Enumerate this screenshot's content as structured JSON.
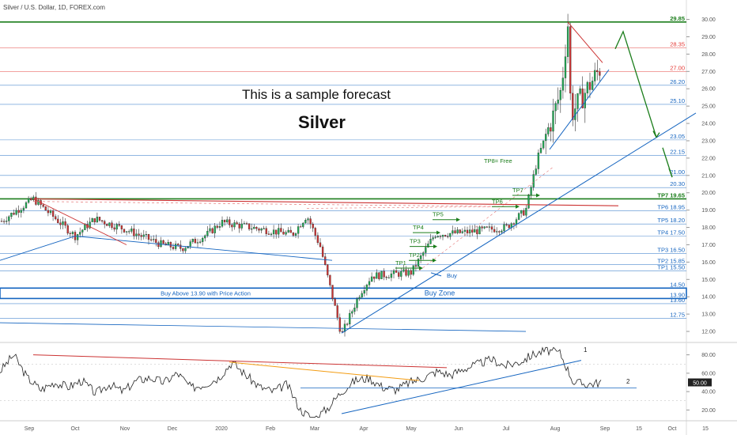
{
  "symbol_title": "Silver / U.S. Dollar, 1D, FOREX.com",
  "forecast_text": "This is a sample forecast",
  "chart_title": "Silver",
  "colors": {
    "up": "#26a69a",
    "bull_candle": "#22aa55",
    "bear_candle": "#cc3333",
    "level_blue": "#1565c0",
    "level_green": "#1b7d1b",
    "level_red": "#e53935",
    "trend_blue": "#1565c0",
    "rsi_line": "#222222"
  },
  "chart_data": [
    {
      "type": "candlestick",
      "title": "Silver / U.S. Dollar, 1D, FOREX.com",
      "x_ticks": [
        "Sep",
        "Oct",
        "Nov",
        "Dec",
        "2020",
        "Feb",
        "Mar",
        "Apr",
        "May",
        "Jun",
        "Jul",
        "Aug",
        "Sep",
        "15",
        "Oct",
        "15"
      ],
      "y_ticks": [
        "12.00",
        "13.00",
        "14.00",
        "15.00",
        "16.00",
        "17.00",
        "18.00",
        "19.00",
        "20.00",
        "21.00",
        "22.00",
        "23.00",
        "24.00",
        "25.00",
        "26.00",
        "27.00",
        "28.00",
        "29.00",
        "30.00"
      ],
      "ylim": [
        11.5,
        30.3
      ],
      "price_series_approx": [
        {
          "date": "Sep 2019",
          "price": 18.3
        },
        {
          "date": "Sep 2019 peak",
          "price": 19.65
        },
        {
          "date": "Oct",
          "price": 17.5
        },
        {
          "date": "Oct mid",
          "price": 18.5
        },
        {
          "date": "Nov",
          "price": 17.9
        },
        {
          "date": "Nov late",
          "price": 17.0
        },
        {
          "date": "Dec",
          "price": 16.8
        },
        {
          "date": "Dec late",
          "price": 17.6
        },
        {
          "date": "2020",
          "price": 18.3
        },
        {
          "date": "Jan",
          "price": 17.9
        },
        {
          "date": "Feb",
          "price": 17.6
        },
        {
          "date": "Feb late",
          "price": 18.7
        },
        {
          "date": "Mar",
          "price": 16.9
        },
        {
          "date": "Mar low",
          "price": 11.8
        },
        {
          "date": "Mar end",
          "price": 14.2
        },
        {
          "date": "Apr",
          "price": 15.2
        },
        {
          "date": "May",
          "price": 15.4
        },
        {
          "date": "May late",
          "price": 17.6
        },
        {
          "date": "Jun",
          "price": 17.7
        },
        {
          "date": "Jul",
          "price": 18.0
        },
        {
          "date": "Jul mid",
          "price": 19.0
        },
        {
          "date": "Jul late",
          "price": 22.0
        },
        {
          "date": "Jul end",
          "price": 24.5
        },
        {
          "date": "Aug",
          "price": 26.0
        },
        {
          "date": "Aug peak",
          "price": 29.85
        },
        {
          "date": "Aug low",
          "price": 24.5
        },
        {
          "date": "Aug late",
          "price": 27.4
        }
      ],
      "levels": [
        {
          "label": "29.85",
          "price": 29.85,
          "color": "#1b7d1b"
        },
        {
          "label": "28.35",
          "price": 28.35,
          "color": "#e53935"
        },
        {
          "label": "27.00",
          "price": 27.0,
          "color": "#e53935"
        },
        {
          "label": "26.20",
          "price": 26.2,
          "color": "#1565c0"
        },
        {
          "label": "25.10",
          "price": 25.1,
          "color": "#1565c0"
        },
        {
          "label": "23.05",
          "price": 23.05,
          "color": "#1565c0"
        },
        {
          "label": "22.15",
          "price": 22.15,
          "color": "#1565c0"
        },
        {
          "label": "21.00",
          "price": 21.0,
          "color": "#1565c0"
        },
        {
          "label": "20.30",
          "price": 20.3,
          "color": "#1565c0"
        },
        {
          "label": "TP7 19.65",
          "price": 19.65,
          "color": "#1b7d1b"
        },
        {
          "label": "TP6 18.95",
          "price": 18.95,
          "color": "#1565c0"
        },
        {
          "label": "TP5 18.20",
          "price": 18.2,
          "color": "#1565c0"
        },
        {
          "label": "TP4 17.50",
          "price": 17.5,
          "color": "#1565c0"
        },
        {
          "label": "TP3 16.50",
          "price": 16.5,
          "color": "#1565c0"
        },
        {
          "label": "TP2 15.85",
          "price": 15.85,
          "color": "#1565c0"
        },
        {
          "label": "TP1 15.50",
          "price": 15.5,
          "color": "#1565c0"
        },
        {
          "label": "14.50",
          "price": 14.5,
          "color": "#1565c0"
        },
        {
          "label": "13.90",
          "price": 13.9,
          "color": "#1565c0"
        },
        {
          "label": "13.60",
          "price": 13.6,
          "color": "#1565c0"
        },
        {
          "label": "12.75",
          "price": 12.75,
          "color": "#1565c0"
        }
      ],
      "annotations": [
        "Buy Above 13.90 with Price Action",
        "Buy Zone",
        "Buy",
        "TP1",
        "TP2",
        "TP3",
        "TP4",
        "TP5",
        "TP6",
        "TP7",
        "TP8= Free"
      ]
    },
    {
      "type": "line",
      "title": "",
      "y_ticks": [
        "80.00",
        "60.00",
        "40.00",
        "20.00"
      ],
      "ylim": [
        10,
        90
      ],
      "current_value_label": "50.00",
      "annotations": [
        "1",
        "2"
      ],
      "values_approx": [
        62,
        80,
        55,
        42,
        50,
        45,
        52,
        38,
        48,
        40,
        52,
        55,
        50,
        60,
        44,
        48,
        55,
        72,
        58,
        45,
        40,
        48,
        20,
        10,
        22,
        40,
        52,
        55,
        45,
        42,
        50,
        55,
        62,
        58,
        65,
        70,
        75,
        68,
        72,
        80,
        85,
        82,
        50,
        48,
        50
      ]
    }
  ]
}
